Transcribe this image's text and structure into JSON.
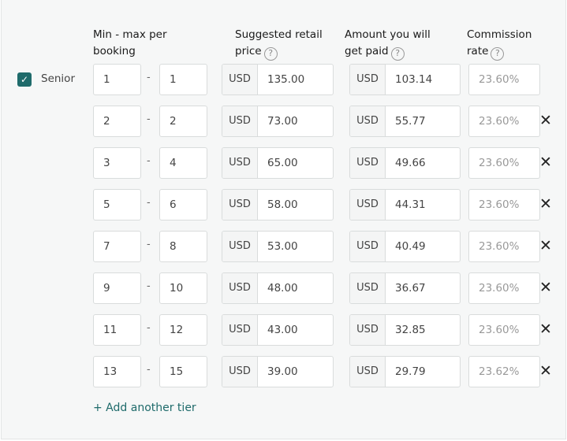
{
  "headers": {
    "minmax_1": "Min - max per",
    "minmax_2": "booking",
    "price_1": "Suggested retail",
    "price_2": "price",
    "paid_1": "Amount you will",
    "paid_2": "get paid",
    "rate_1": "Commission",
    "rate_2": "rate",
    "help": "?"
  },
  "category": {
    "label": "Senior",
    "checked": true
  },
  "currency": "USD",
  "tiers": [
    {
      "min": "1",
      "max": "1",
      "price": "135.00",
      "paid": "103.14",
      "rate": "23.60%",
      "removable": false
    },
    {
      "min": "2",
      "max": "2",
      "price": "73.00",
      "paid": "55.77",
      "rate": "23.60%",
      "removable": true
    },
    {
      "min": "3",
      "max": "4",
      "price": "65.00",
      "paid": "49.66",
      "rate": "23.60%",
      "removable": true
    },
    {
      "min": "5",
      "max": "6",
      "price": "58.00",
      "paid": "44.31",
      "rate": "23.60%",
      "removable": true
    },
    {
      "min": "7",
      "max": "8",
      "price": "53.00",
      "paid": "40.49",
      "rate": "23.60%",
      "removable": true
    },
    {
      "min": "9",
      "max": "10",
      "price": "48.00",
      "paid": "36.67",
      "rate": "23.60%",
      "removable": true
    },
    {
      "min": "11",
      "max": "12",
      "price": "43.00",
      "paid": "32.85",
      "rate": "23.60%",
      "removable": true
    },
    {
      "min": "13",
      "max": "15",
      "price": "39.00",
      "paid": "29.79",
      "rate": "23.62%",
      "removable": true
    }
  ],
  "dash": "-",
  "remove_glyph": "✕",
  "add_tier": "+ Add another tier",
  "colors": {
    "accent": "#1f6b6b",
    "background": "#f6f7f7"
  }
}
